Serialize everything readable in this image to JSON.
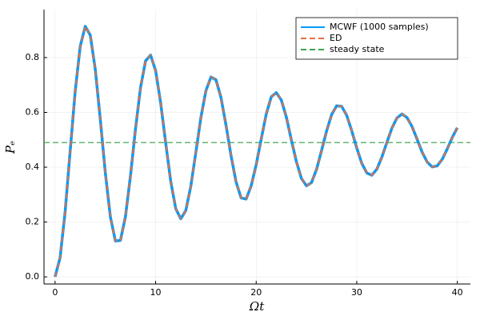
{
  "chart_data": {
    "type": "line",
    "xlabel": "Ωt",
    "ylabel": "Pₑ",
    "x": [
      0,
      0.5,
      1,
      1.5,
      2,
      2.5,
      3,
      3.5,
      4,
      4.5,
      5,
      5.5,
      6,
      6.5,
      7,
      7.5,
      8,
      8.5,
      9,
      9.5,
      10,
      10.5,
      11,
      11.5,
      12,
      12.5,
      13,
      13.5,
      14,
      14.5,
      15,
      15.5,
      16,
      16.5,
      17,
      17.5,
      18,
      18.5,
      19,
      19.5,
      20,
      20.5,
      21,
      21.5,
      22,
      22.5,
      23,
      23.5,
      24,
      24.5,
      25,
      25.5,
      26,
      26.5,
      27,
      27.5,
      28,
      28.5,
      29,
      29.5,
      30,
      30.5,
      31,
      31.5,
      32,
      32.5,
      33,
      33.5,
      34,
      34.5,
      35,
      35.5,
      36,
      36.5,
      37,
      37.5,
      38,
      38.5,
      39,
      39.5,
      40
    ],
    "series": [
      {
        "name": "MCWF (1000 samples)",
        "color": "#009af9",
        "style": "solid",
        "values": [
          0,
          0.07,
          0.237,
          0.458,
          0.676,
          0.841,
          0.914,
          0.882,
          0.757,
          0.574,
          0.379,
          0.219,
          0.131,
          0.133,
          0.22,
          0.369,
          0.54,
          0.691,
          0.788,
          0.809,
          0.752,
          0.635,
          0.489,
          0.349,
          0.249,
          0.212,
          0.242,
          0.331,
          0.454,
          0.581,
          0.679,
          0.729,
          0.719,
          0.654,
          0.553,
          0.442,
          0.346,
          0.288,
          0.284,
          0.332,
          0.409,
          0.503,
          0.594,
          0.657,
          0.672,
          0.645,
          0.583,
          0.499,
          0.42,
          0.359,
          0.332,
          0.344,
          0.392,
          0.461,
          0.532,
          0.592,
          0.624,
          0.622,
          0.589,
          0.533,
          0.47,
          0.414,
          0.379,
          0.371,
          0.393,
          0.437,
          0.491,
          0.543,
          0.58,
          0.594,
          0.581,
          0.548,
          0.502,
          0.455,
          0.419,
          0.401,
          0.405,
          0.429,
          0.467,
          0.509,
          0.544
        ]
      },
      {
        "name": "ED",
        "color": "#e26f46",
        "style": "dashed",
        "values": [
          0,
          0.07,
          0.237,
          0.458,
          0.676,
          0.841,
          0.914,
          0.882,
          0.757,
          0.574,
          0.379,
          0.219,
          0.131,
          0.133,
          0.22,
          0.369,
          0.54,
          0.691,
          0.788,
          0.809,
          0.752,
          0.635,
          0.489,
          0.349,
          0.249,
          0.212,
          0.242,
          0.331,
          0.454,
          0.581,
          0.679,
          0.729,
          0.719,
          0.654,
          0.553,
          0.442,
          0.346,
          0.288,
          0.284,
          0.332,
          0.409,
          0.503,
          0.594,
          0.657,
          0.672,
          0.645,
          0.583,
          0.499,
          0.42,
          0.359,
          0.332,
          0.344,
          0.392,
          0.461,
          0.532,
          0.592,
          0.624,
          0.622,
          0.589,
          0.533,
          0.47,
          0.414,
          0.379,
          0.371,
          0.393,
          0.437,
          0.491,
          0.543,
          0.58,
          0.594,
          0.581,
          0.548,
          0.502,
          0.455,
          0.419,
          0.401,
          0.405,
          0.429,
          0.467,
          0.509,
          0.544
        ]
      }
    ],
    "hline": {
      "name": "steady state",
      "color": "#3da44d",
      "value": 0.49
    },
    "xlim": [
      -1.1,
      41.3
    ],
    "xticks": [
      0,
      10,
      20,
      30,
      40
    ],
    "ylim": [
      -0.026,
      0.975
    ],
    "yticks": [
      {
        "value": 0,
        "label": "0.0"
      },
      0.2,
      0.4,
      0.6,
      0.8
    ],
    "grid": true,
    "legend": "top-right"
  }
}
